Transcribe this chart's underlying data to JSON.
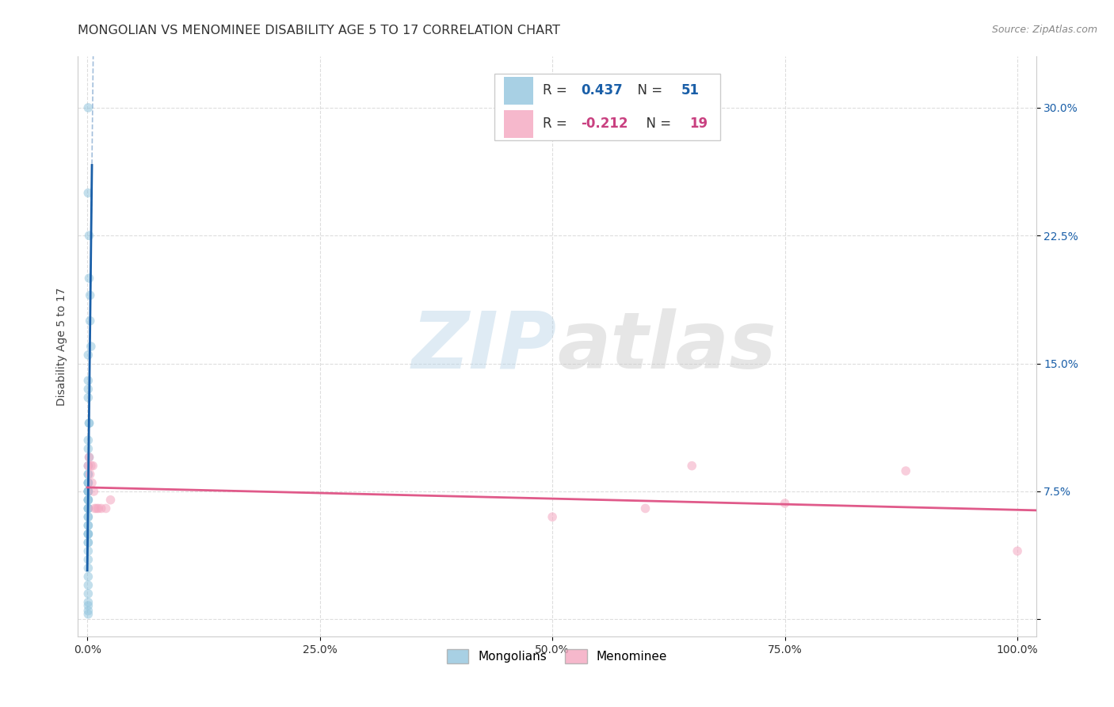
{
  "title": "MONGOLIAN VS MENOMINEE DISABILITY AGE 5 TO 17 CORRELATION CHART",
  "source": "Source: ZipAtlas.com",
  "ylabel": "Disability Age 5 to 17",
  "watermark_zip": "ZIP",
  "watermark_atlas": "atlas",
  "mongolian_R": 0.437,
  "mongolian_N": 51,
  "menominee_R": -0.212,
  "menominee_N": 19,
  "blue_color": "#92c5de",
  "pink_color": "#f4a6c0",
  "blue_line_color": "#1a5fa8",
  "pink_line_color": "#e05a8a",
  "blue_text_color": "#1a5fa8",
  "pink_text_color": "#c94080",
  "dark_text_color": "#333333",
  "mongolian_x": [
    0.001,
    0.001,
    0.002,
    0.002,
    0.003,
    0.003,
    0.004,
    0.001,
    0.001,
    0.001,
    0.001,
    0.002,
    0.002,
    0.001,
    0.001,
    0.002,
    0.001,
    0.001,
    0.001,
    0.001,
    0.001,
    0.001,
    0.001,
    0.001,
    0.001,
    0.001,
    0.001,
    0.001,
    0.001,
    0.001,
    0.001,
    0.001,
    0.001,
    0.001,
    0.001,
    0.001,
    0.001,
    0.001,
    0.001,
    0.001,
    0.001,
    0.001,
    0.001,
    0.001,
    0.001,
    0.001,
    0.001,
    0.001,
    0.001,
    0.001,
    0.001
  ],
  "mongolian_y": [
    0.3,
    0.25,
    0.225,
    0.2,
    0.19,
    0.175,
    0.16,
    0.155,
    0.14,
    0.135,
    0.13,
    0.115,
    0.115,
    0.105,
    0.1,
    0.095,
    0.09,
    0.085,
    0.085,
    0.08,
    0.08,
    0.08,
    0.075,
    0.075,
    0.075,
    0.075,
    0.07,
    0.07,
    0.07,
    0.065,
    0.065,
    0.065,
    0.06,
    0.06,
    0.055,
    0.055,
    0.05,
    0.05,
    0.05,
    0.045,
    0.045,
    0.04,
    0.035,
    0.03,
    0.025,
    0.02,
    0.015,
    0.01,
    0.008,
    0.005,
    0.003
  ],
  "menominee_x": [
    0.001,
    0.002,
    0.003,
    0.004,
    0.005,
    0.006,
    0.007,
    0.008,
    0.01,
    0.012,
    0.015,
    0.02,
    0.025,
    0.5,
    0.6,
    0.65,
    0.75,
    0.88,
    1.0
  ],
  "menominee_y": [
    0.09,
    0.095,
    0.085,
    0.09,
    0.08,
    0.09,
    0.075,
    0.065,
    0.065,
    0.065,
    0.065,
    0.065,
    0.07,
    0.06,
    0.065,
    0.09,
    0.068,
    0.087,
    0.04
  ],
  "xlim": [
    -0.01,
    1.02
  ],
  "ylim": [
    -0.01,
    0.33
  ],
  "xticks": [
    0.0,
    0.25,
    0.5,
    0.75,
    1.0
  ],
  "xtick_labels": [
    "0.0%",
    "25.0%",
    "50.0%",
    "75.0%",
    "100.0%"
  ],
  "ytick_positions": [
    0.0,
    0.075,
    0.15,
    0.225,
    0.3
  ],
  "ytick_labels": [
    "",
    "7.5%",
    "15.0%",
    "22.5%",
    "30.0%"
  ],
  "grid_color": "#dddddd",
  "background_color": "#ffffff",
  "marker_size": 70,
  "marker_alpha": 0.55,
  "title_fontsize": 11.5,
  "source_fontsize": 9,
  "axis_label_fontsize": 10,
  "tick_fontsize": 10,
  "legend_fontsize": 12
}
